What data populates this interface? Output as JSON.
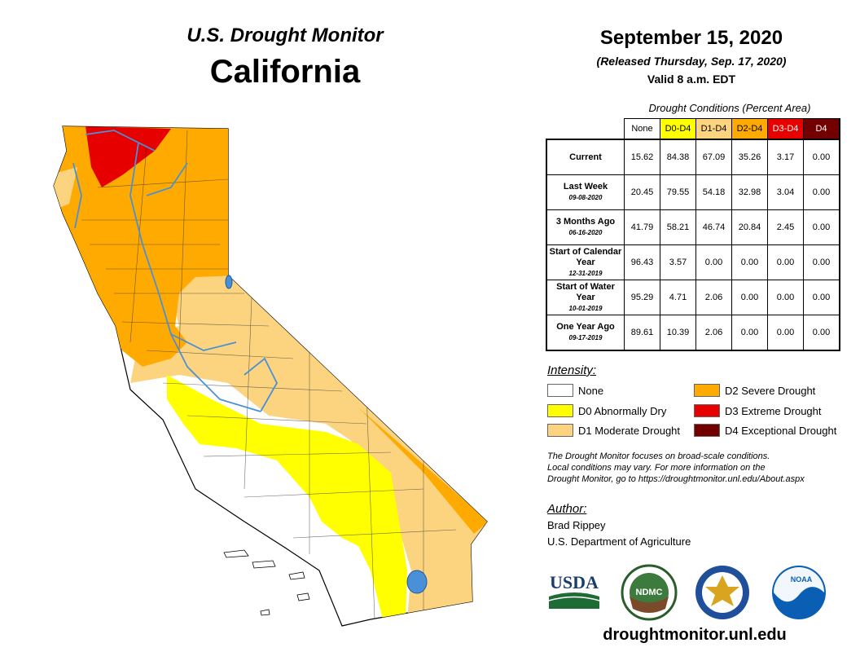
{
  "header": {
    "title": "U.S. Drought Monitor",
    "state": "California",
    "date": "September 15, 2020",
    "released": "(Released Thursday, Sep. 17, 2020)",
    "valid": "Valid 8 a.m. EDT"
  },
  "conditions": {
    "caption": "Drought Conditions (Percent Area)",
    "columns": [
      {
        "label": "None",
        "color": "#ffffff",
        "text_color": "#000000"
      },
      {
        "label": "D0-D4",
        "color": "#ffff00",
        "text_color": "#000000"
      },
      {
        "label": "D1-D4",
        "color": "#fcd37f",
        "text_color": "#000000"
      },
      {
        "label": "D2-D4",
        "color": "#ffaa00",
        "text_color": "#000000"
      },
      {
        "label": "D3-D4",
        "color": "#e60000",
        "text_color": "#ffffff"
      },
      {
        "label": "D4",
        "color": "#730000",
        "text_color": "#ffffff"
      }
    ],
    "rows": [
      {
        "label": "Current",
        "sub": "",
        "values": [
          "15.62",
          "84.38",
          "67.09",
          "35.26",
          "3.17",
          "0.00"
        ]
      },
      {
        "label": "Last Week",
        "sub": "09-08-2020",
        "values": [
          "20.45",
          "79.55",
          "54.18",
          "32.98",
          "3.04",
          "0.00"
        ]
      },
      {
        "label": "3 Months Ago",
        "sub": "06-16-2020",
        "values": [
          "41.79",
          "58.21",
          "46.74",
          "20.84",
          "2.45",
          "0.00"
        ]
      },
      {
        "label": "Start of Calendar Year",
        "sub": "12-31-2019",
        "values": [
          "96.43",
          "3.57",
          "0.00",
          "0.00",
          "0.00",
          "0.00"
        ]
      },
      {
        "label": "Start of Water Year",
        "sub": "10-01-2019",
        "values": [
          "95.29",
          "4.71",
          "2.06",
          "0.00",
          "0.00",
          "0.00"
        ]
      },
      {
        "label": "One Year Ago",
        "sub": "09-17-2019",
        "values": [
          "89.61",
          "10.39",
          "2.06",
          "0.00",
          "0.00",
          "0.00"
        ]
      }
    ]
  },
  "legend": {
    "heading": "Intensity:",
    "items": [
      {
        "label": "None",
        "color": "#ffffff"
      },
      {
        "label": "D0 Abnormally Dry",
        "color": "#ffff00"
      },
      {
        "label": "D1 Moderate Drought",
        "color": "#fcd37f"
      },
      {
        "label": "D2 Severe Drought",
        "color": "#ffaa00"
      },
      {
        "label": "D3 Extreme Drought",
        "color": "#e60000"
      },
      {
        "label": "D4 Exceptional Drought",
        "color": "#730000"
      }
    ]
  },
  "note": {
    "line1": "The Drought Monitor focuses on broad-scale conditions.",
    "line2": "Local conditions may vary. For more information on the",
    "line3": "Drought Monitor, go to https://droughtmonitor.unl.edu/About.aspx"
  },
  "author": {
    "heading": "Author:",
    "name": "Brad Rippey",
    "org": "U.S. Department of Agriculture"
  },
  "logos": {
    "usda": "USDA",
    "ndmc": "NDMC",
    "noaa": "NOAA"
  },
  "site": "droughtmonitor.unl.edu",
  "map_colors": {
    "none": "#ffffff",
    "d0": "#ffff00",
    "d1": "#fcd37f",
    "d2": "#ffaa00",
    "d3": "#e60000",
    "water": "#4a90d9"
  }
}
